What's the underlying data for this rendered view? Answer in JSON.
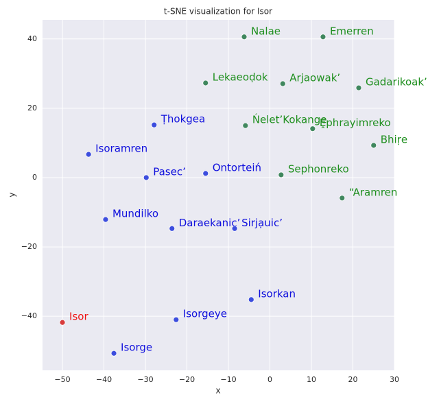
{
  "chart_data": {
    "type": "scatter",
    "title": "t-SNE visualization for Isor",
    "x_label": "x",
    "y_label": "y",
    "xlim": [
      -54.8,
      30
    ],
    "ylim": [
      -55.6,
      45.5
    ],
    "xticks": [
      {
        "value": -50,
        "label": "−50"
      },
      {
        "value": -40,
        "label": "−40"
      },
      {
        "value": -30,
        "label": "−30"
      },
      {
        "value": -20,
        "label": "−20"
      },
      {
        "value": -10,
        "label": "−10"
      },
      0,
      10,
      20,
      30
    ],
    "yticks": [
      {
        "value": -40,
        "label": "−40"
      },
      {
        "value": -20,
        "label": "−20"
      },
      0,
      20,
      40
    ],
    "grid": true,
    "series": [
      {
        "color": "#2e7d4f",
        "label_color": "#1f8f1f",
        "labels": [
          "Nalae",
          "Emerren",
          "Lekaeoḍok",
          "Arjaowak’",
          "Gadarikoak’",
          "Ńelet’Kokange",
          "Ḙphrayimreko",
          "Bhiṛe",
          "Sephonreko",
          "“Aramren"
        ],
        "x": [
          -6.2,
          12.8,
          -15.5,
          3.1,
          21.4,
          -5.9,
          10.3,
          25.0,
          2.7,
          17.4
        ],
        "y": [
          40.6,
          40.6,
          27.3,
          27.1,
          25.9,
          15.0,
          14.1,
          9.3,
          0.8,
          -5.9
        ]
      },
      {
        "color": "#2a3ddc",
        "label_color": "#1010dd",
        "labels": [
          "Ṭhokgea",
          "Isoramren",
          "Ontorteiń",
          "Pasec’",
          "Mundilko",
          "Daraekanic’",
          "Sirjạuic’",
          "Isorkan",
          "Isorgeye",
          "Isorge"
        ],
        "x": [
          -27.9,
          -43.7,
          -15.5,
          -29.8,
          -39.6,
          -23.6,
          -8.5,
          -4.5,
          -22.6,
          -37.6
        ],
        "y": [
          15.2,
          6.7,
          1.2,
          0,
          -12.1,
          -14.7,
          -14.7,
          -35.2,
          -41.0,
          -50.7
        ]
      },
      {
        "color": "#d62728",
        "label_color": "#ee1111",
        "labels": [
          "Isor"
        ],
        "x": [
          -50.0
        ],
        "y": [
          -41.8
        ]
      }
    ]
  }
}
